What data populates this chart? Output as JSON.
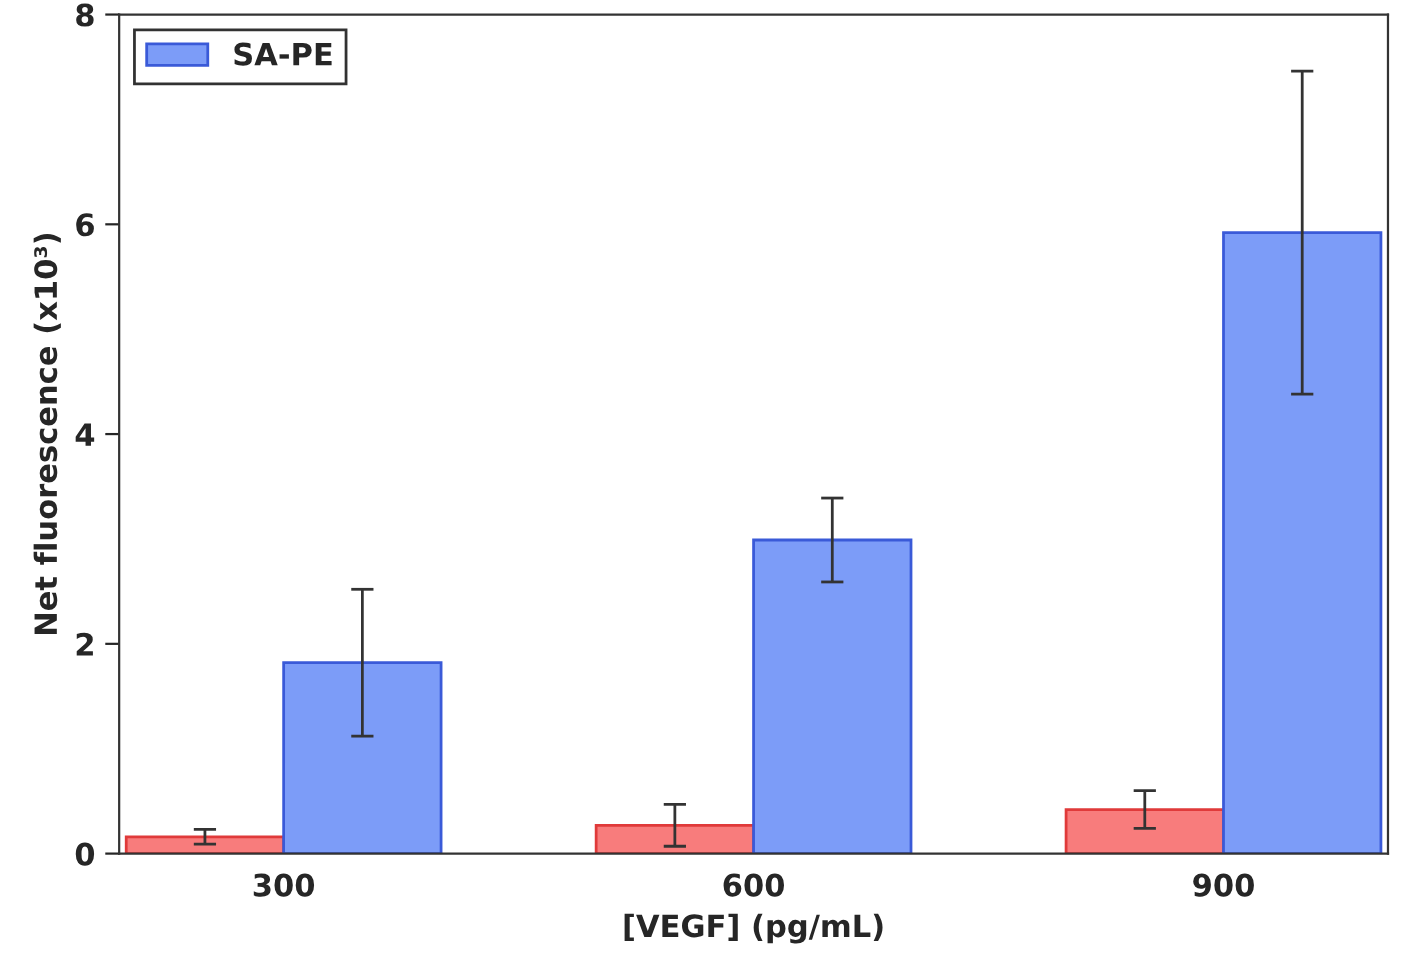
{
  "chart_data": {
    "type": "bar",
    "xlabel": "[VEGF] (pg/mL)",
    "ylabel": "Net fluorescence (x10³)",
    "categories": [
      "300",
      "600",
      "900"
    ],
    "series": [
      {
        "color": "#f87c7c",
        "values": [
          0.16,
          0.27,
          0.42
        ],
        "errors": [
          0.07,
          0.2,
          0.18
        ]
      },
      {
        "name": "SA-PE",
        "color": "#7c9cf8",
        "values": [
          1.82,
          2.99,
          5.92
        ],
        "errors": [
          0.7,
          0.4,
          1.54
        ]
      }
    ],
    "ylim": [
      0,
      8
    ],
    "yticks": [
      0,
      2,
      4,
      6,
      8
    ],
    "grid": false,
    "legend": "top left"
  }
}
